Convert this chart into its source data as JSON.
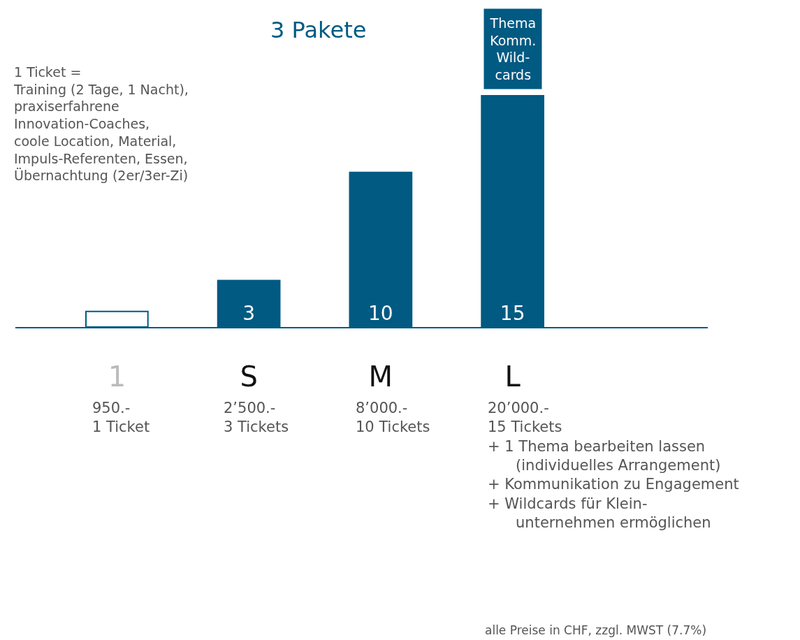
{
  "chart_data": {
    "type": "bar",
    "title": "3 Pakete",
    "tick_labels": "x",
    "categories": [
      "1",
      "S",
      "M",
      "L"
    ],
    "values": [
      1,
      3,
      10,
      15
    ],
    "ylim": [
      0,
      15
    ],
    "colors": [
      "#ffffff",
      "#005a82",
      "#005a82",
      "#005a82"
    ],
    "value_labels": [
      null,
      "3",
      "10",
      "15"
    ],
    "annotations": [
      "1 Ticket =\nTraining (2 Tage, 1 Nacht),\npraxiserfahrene\nInnovation-Coaches,\ncoole Location, Material,\nImpuls-Referenten, Essen,\nÜbernachtung (2er/3er-Zi)",
      "alle Preise in CHF, zzgl. MWST (7.7%)",
      "950.-\n1 Ticket",
      "2’500.-\n3 Tickets",
      "8’000.-\n10 Tickets",
      "20’000.-\n15 Tickets\n+ 1 Thema bearbeiten lassen\n   (individuelles Arrangement)\n+ Kommunikation zu Engagement\n+ Wildcards für Klein-\n   unternehmen ermöglichen",
      {
        "text": "Thema\nKomm.\nWild-\ncards",
        "x": "L",
        "y": 15
      }
    ]
  }
}
